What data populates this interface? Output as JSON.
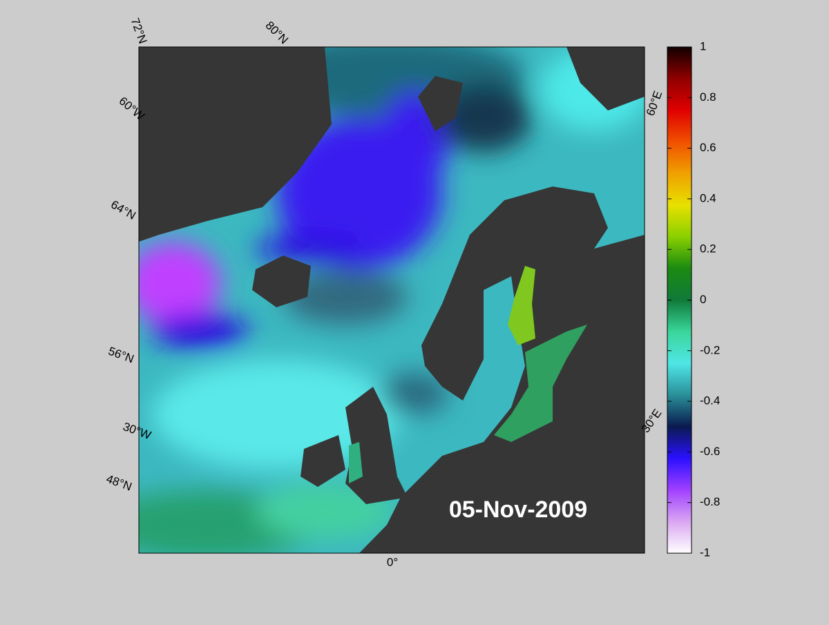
{
  "map": {
    "date": "05-Nov-2009",
    "graticule_labels": [
      "72°N",
      "80°N",
      "60°W",
      "64°N",
      "56°N",
      "30°W",
      "48°N",
      "0°",
      "60°E",
      "30°E"
    ]
  },
  "colorbar": {
    "lim": [
      -1,
      1
    ],
    "ticks": [
      -1,
      -0.8,
      -0.6,
      -0.4,
      -0.2,
      0,
      0.2,
      0.4,
      0.6,
      0.8,
      1
    ],
    "colors": [
      "#ffffff",
      "#d9a6f2",
      "#a040ff",
      "#2a10ff",
      "#0a1a50",
      "#2a8f98",
      "#4fe6e6",
      "#3ad69a",
      "#107a3a",
      "#1a8a10",
      "#8ad000",
      "#e8e000",
      "#f0a000",
      "#f05000",
      "#e00000",
      "#900000",
      "#100000"
    ]
  }
}
